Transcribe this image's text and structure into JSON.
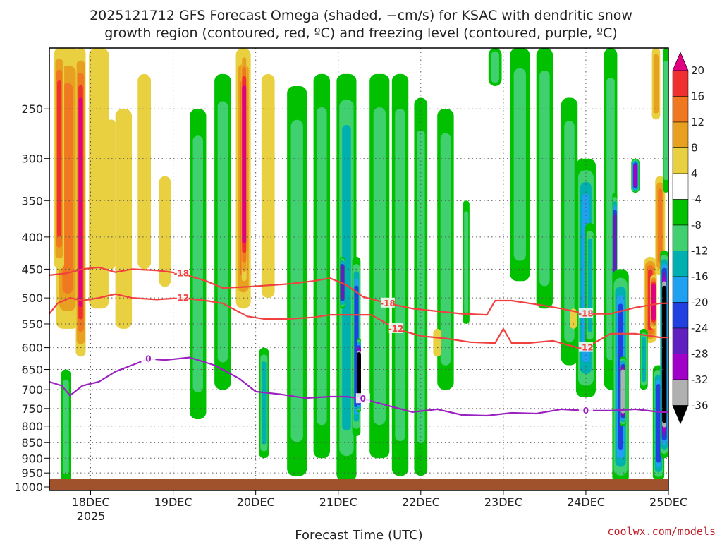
{
  "title_line1": "2025121712 GFS Forecast Omega (shaded, −cm/s) for KSAC with dendritic snow",
  "title_line2": "growth region (contoured, red, ºC) and freezing level (contoured, purple, ºC)",
  "credit": "coolwx.com/models",
  "chart_data": {
    "type": "heatmap",
    "xlabel": "Forecast Time (UTC)",
    "ylabel": "",
    "x_ticks": [
      "18DEC",
      "19DEC",
      "20DEC",
      "21DEC",
      "22DEC",
      "23DEC",
      "24DEC",
      "25DEC"
    ],
    "x_tick_year": "2025",
    "x_range_days": [
      17.5,
      25.0
    ],
    "y_ticks": [
      250,
      300,
      350,
      400,
      450,
      500,
      550,
      600,
      650,
      700,
      750,
      800,
      850,
      900,
      950,
      1000
    ],
    "y_range_hpa": [
      200,
      1013
    ],
    "y_scale": "log-pressure",
    "colorbar_labels": [
      "20",
      "16",
      "12",
      "8",
      "4",
      "-4",
      "-8",
      "-12",
      "-16",
      "-20",
      "-24",
      "-28",
      "-32",
      "-36"
    ],
    "colorbar_colors": [
      "#e00080",
      "#f03030",
      "#f07820",
      "#e8a020",
      "#e8d040",
      "#ffffff",
      "#00c000",
      "#40d070",
      "#00b0b0",
      "#20a0f0",
      "#2040e0",
      "#6020c0",
      "#a000c8",
      "#b0b0b0",
      "#000000"
    ],
    "contour_labels": {
      "freezing": "0",
      "dgz_top": "-18",
      "dgz_bottom": "-12"
    },
    "series": [
      {
        "name": "0",
        "color": "#9a20c0",
        "x": [
          17.5,
          17.65,
          17.75,
          17.9,
          18.1,
          18.3,
          18.5,
          18.7,
          18.9,
          19.2,
          19.5,
          19.8,
          20.0,
          20.3,
          20.6,
          20.9,
          21.1,
          21.3,
          21.6,
          21.9,
          22.2,
          22.5,
          22.8,
          23.1,
          23.4,
          23.7,
          24.0,
          24.3,
          24.6,
          24.9,
          25.0
        ],
        "y": [
          680,
          690,
          715,
          690,
          680,
          655,
          640,
          625,
          628,
          622,
          640,
          672,
          705,
          712,
          722,
          718,
          718,
          724,
          742,
          760,
          752,
          768,
          770,
          762,
          764,
          752,
          756,
          756,
          752,
          760,
          760
        ]
      },
      {
        "name": "-12",
        "color": "#f04040",
        "x": [
          17.5,
          17.6,
          17.75,
          17.9,
          18.1,
          18.3,
          18.5,
          18.8,
          19.1,
          19.4,
          19.6,
          19.9,
          20.1,
          20.4,
          20.7,
          20.9,
          21.1,
          21.4,
          21.7,
          22.0,
          22.3,
          22.6,
          22.9,
          23.0,
          23.1,
          23.3,
          23.6,
          23.9,
          24.0,
          24.3,
          24.6,
          24.9,
          25.0
        ],
        "y": [
          530,
          510,
          500,
          505,
          500,
          493,
          500,
          503,
          500,
          505,
          510,
          535,
          540,
          540,
          537,
          532,
          532,
          532,
          560,
          575,
          580,
          588,
          590,
          560,
          590,
          590,
          585,
          600,
          600,
          570,
          570,
          578,
          578
        ]
      },
      {
        "name": "-18",
        "color": "#f04040",
        "x": [
          17.5,
          17.7,
          17.9,
          18.1,
          18.3,
          18.5,
          18.8,
          19.1,
          19.4,
          19.6,
          19.9,
          20.1,
          20.4,
          20.7,
          20.9,
          21.1,
          21.3,
          21.6,
          21.9,
          22.2,
          22.5,
          22.8,
          22.9,
          23.1,
          23.4,
          23.7,
          24.0,
          24.3,
          24.6,
          24.9,
          25.0
        ],
        "y": [
          460,
          457,
          450,
          447,
          455,
          450,
          452,
          457,
          470,
          482,
          480,
          478,
          475,
          470,
          465,
          477,
          498,
          510,
          520,
          525,
          530,
          532,
          505,
          505,
          512,
          520,
          530,
          530,
          518,
          510,
          510
        ]
      }
    ]
  }
}
